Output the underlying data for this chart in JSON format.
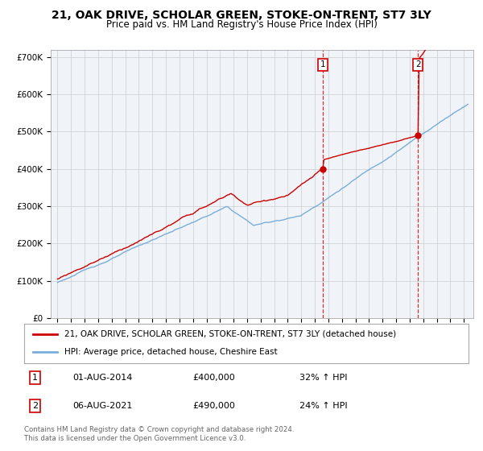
{
  "title": "21, OAK DRIVE, SCHOLAR GREEN, STOKE-ON-TRENT, ST7 3LY",
  "subtitle": "Price paid vs. HM Land Registry's House Price Index (HPI)",
  "ylim": [
    0,
    720000
  ],
  "yticks": [
    0,
    100000,
    200000,
    300000,
    400000,
    500000,
    600000,
    700000
  ],
  "ytick_labels": [
    "£0",
    "£100K",
    "£200K",
    "£300K",
    "£400K",
    "£500K",
    "£600K",
    "£700K"
  ],
  "background_color": "#f0f4f8",
  "grid_color": "#cccccc",
  "line1_color": "#cc0000",
  "line2_color": "#7aaddb",
  "sale1_year": 2014.58,
  "sale1_price": 400000,
  "sale2_year": 2021.58,
  "sale2_price": 490000,
  "legend_line1": "21, OAK DRIVE, SCHOLAR GREEN, STOKE-ON-TRENT, ST7 3LY (detached house)",
  "legend_line2": "HPI: Average price, detached house, Cheshire East",
  "annotation1_date": "01-AUG-2014",
  "annotation1_price": "£400,000",
  "annotation1_hpi": "32% ↑ HPI",
  "annotation2_date": "06-AUG-2021",
  "annotation2_price": "£490,000",
  "annotation2_hpi": "24% ↑ HPI",
  "footer": "Contains HM Land Registry data © Crown copyright and database right 2024.\nThis data is licensed under the Open Government Licence v3.0.",
  "title_fontsize": 10,
  "subtitle_fontsize": 8.5
}
